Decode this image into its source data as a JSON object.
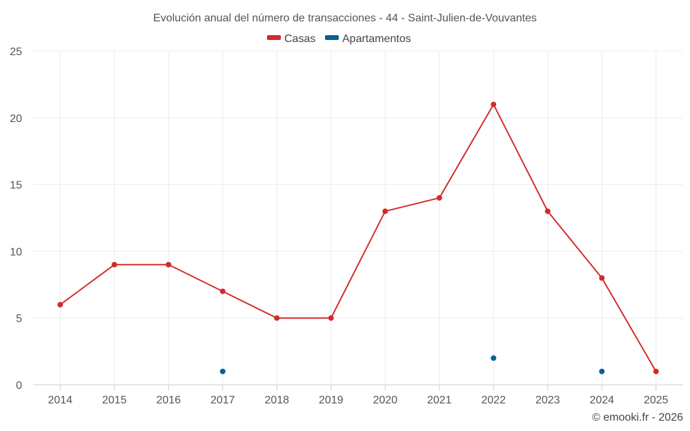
{
  "chart_data": {
    "type": "line",
    "title": "Evolución anual del número de transacciones - 44 - Saint-Julien-de-Vouvantes",
    "categories": [
      "2014",
      "2015",
      "2016",
      "2017",
      "2018",
      "2019",
      "2020",
      "2021",
      "2022",
      "2023",
      "2024",
      "2025"
    ],
    "ylim": [
      0,
      25
    ],
    "yticks": [
      0,
      5,
      10,
      15,
      20,
      25
    ],
    "grid": true,
    "legend_position": "top-center",
    "series": [
      {
        "name": "Casas",
        "color": "#d32a2a",
        "style": "line+markers",
        "values": [
          6,
          9,
          9,
          7,
          5,
          5,
          13,
          14,
          21,
          13,
          8,
          1
        ]
      },
      {
        "name": "Apartamentos",
        "color": "#0a5f96",
        "style": "markers",
        "values": [
          null,
          null,
          null,
          1,
          null,
          null,
          null,
          null,
          2,
          null,
          1,
          null
        ]
      }
    ],
    "credit": "© emooki.fr - 2026"
  }
}
